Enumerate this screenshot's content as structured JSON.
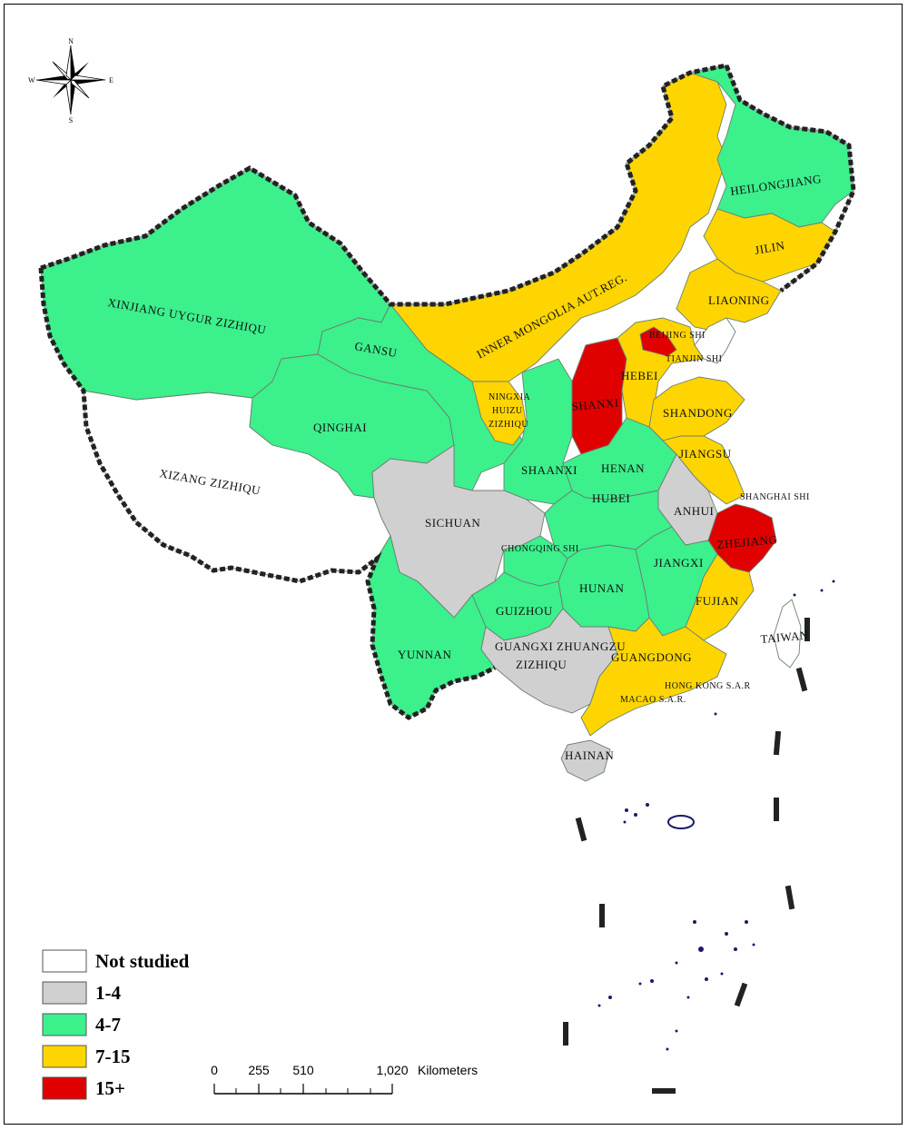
{
  "colors": {
    "not_studied": "#ffffff",
    "range_1_4": "#d0d0d0",
    "range_4_7": "#3cf08c",
    "range_7_15": "#ffd500",
    "range_15_plus": "#e00000"
  },
  "compass": {
    "n": "N",
    "s": "S",
    "e": "E",
    "w": "W"
  },
  "provinces": {
    "xinjiang": "XINJIANG UYGUR ZIZHIQU",
    "xizang": "XIZANG ZIZHIQU",
    "qinghai": "QINGHAI",
    "gansu": "GANSU",
    "inner_mongolia": "INNER MONGOLIA AUT.REG.",
    "heilongjiang": "HEILONGJIANG",
    "jilin": "JILIN",
    "liaoning": "LIAONING",
    "beijing": "BEIJING SHI",
    "tianjin": "TIANJIN SHI",
    "hebei": "HEBEI",
    "shanxi": "SHANXI",
    "shandong": "SHANDONG",
    "ningxia_1": "NINGXIA",
    "ningxia_2": "HUIZU",
    "ningxia_3": "ZIZHIQU",
    "shaanxi": "SHAANXI",
    "henan": "HENAN",
    "jiangsu": "JIANGSU",
    "shanghai": "SHANGHAI SHI",
    "anhui": "ANHUI",
    "zhejiang": "ZHEJIANG",
    "sichuan": "SICHUAN",
    "hubei": "HUBEI",
    "chongqing": "CHONGQING SHI",
    "jiangxi": "JIANGXI",
    "hunan": "HUNAN",
    "guizhou": "GUIZHOU",
    "fujian": "FUJIAN",
    "taiwan": "TAIWAN",
    "yunnan": "YUNNAN",
    "guangxi_1": "GUANGXI ZHUANGZU",
    "guangxi_2": "ZIZHIQU",
    "guangdong": "GUANGDONG",
    "hongkong": "HONG KONG S.A.R",
    "macao": "MACAO S.A.R.",
    "hainan": "HAINAN"
  },
  "legend": {
    "items": [
      {
        "label": "Not studied",
        "color": "#ffffff"
      },
      {
        "label": "1-4",
        "color": "#d0d0d0"
      },
      {
        "label": "4-7",
        "color": "#3cf08c"
      },
      {
        "label": "7-15",
        "color": "#ffd500"
      },
      {
        "label": "15+",
        "color": "#e00000"
      }
    ]
  },
  "scale_bar": {
    "ticks": [
      "0",
      "255",
      "510",
      "1,020"
    ],
    "unit": "Kilometers"
  }
}
